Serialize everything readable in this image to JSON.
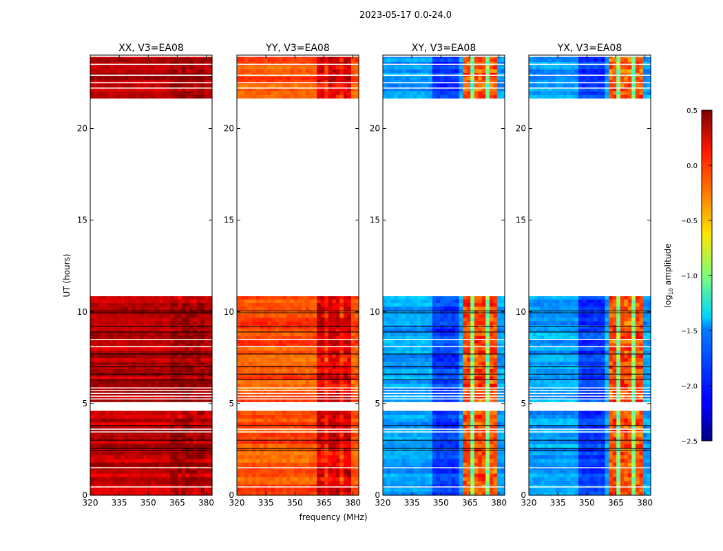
{
  "chart_data": {
    "type": "heatmap",
    "title": "2023-05-17 0.0-24.0",
    "xlabel": "frequency (MHz)",
    "ylabel": "UT (hours)",
    "xlim": [
      320,
      383
    ],
    "ylim": [
      0,
      24
    ],
    "xticks": [
      "320",
      "335",
      "350",
      "365",
      "380"
    ],
    "yticks": [
      "0",
      "5",
      "10",
      "15",
      "20"
    ],
    "data_segments_hours": [
      [
        0,
        4.6
      ],
      [
        5.1,
        10.85
      ],
      [
        21.65,
        23.9
      ]
    ],
    "flagged_white_hours": [
      0.45,
      1.5,
      3.45,
      3.6,
      5.25,
      5.4,
      5.55,
      5.7,
      5.85,
      8.1,
      8.5,
      22.2,
      22.5,
      22.9,
      23.5
    ],
    "black_line_hours": [
      2.45,
      2.55,
      3.0,
      3.8,
      6.3,
      6.6,
      7.0,
      7.7,
      8.9,
      9.2,
      9.95,
      10.05
    ],
    "rfi_band_mhz": [
      362,
      380
    ],
    "panels": [
      {
        "title": "XX, V3=EA08",
        "base_log10": 0.32,
        "rfi_delta": 0.1
      },
      {
        "title": "YY, V3=EA08",
        "base_log10": -0.12,
        "rfi_delta": 0.35
      },
      {
        "title": "XY, V3=EA08",
        "base_log10": -1.65,
        "rfi_delta": 1.55
      },
      {
        "title": "YX, V3=EA08",
        "base_log10": -1.65,
        "rfi_delta": 1.55
      }
    ],
    "colorbar": {
      "label": "log10 amplitude",
      "label_main": "log",
      "label_sub": "10",
      "label_rest": " amplitude",
      "range": [
        -2.5,
        0.5
      ],
      "ticks": [
        "0.5",
        "0.0",
        "−0.5",
        "−1.0",
        "−1.5",
        "−2.0",
        "−2.5"
      ],
      "tick_values": [
        0.5,
        0.0,
        -0.5,
        -1.0,
        -1.5,
        -2.0,
        -2.5
      ],
      "colormap": "jet"
    }
  }
}
